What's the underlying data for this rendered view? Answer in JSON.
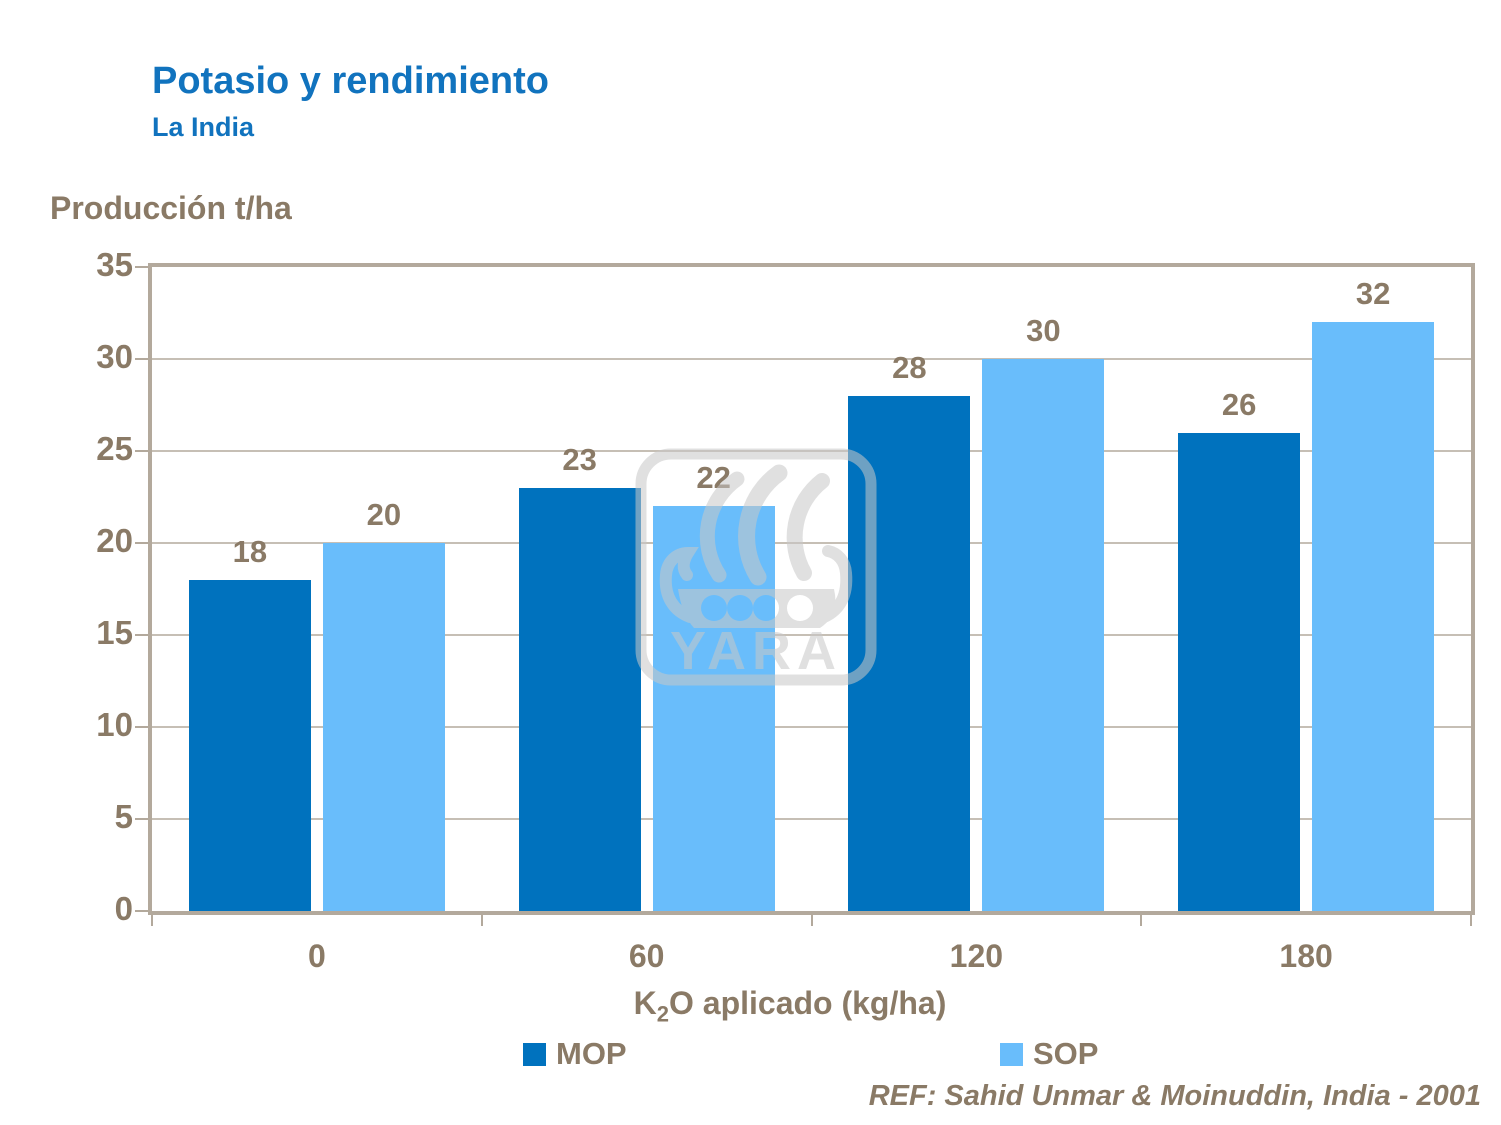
{
  "header": {
    "title": "Potasio y rendimiento",
    "subtitle": "La India"
  },
  "chart_data": {
    "type": "bar",
    "title": "Potasio y rendimiento",
    "subtitle": "La India",
    "ylabel": "Producción t/ha",
    "xlabel": "K2O aplicado (kg/ha)",
    "xlabel_parts": {
      "base": "K",
      "sub": "2",
      "rest": "O aplicado (kg/ha)"
    },
    "categories": [
      "0",
      "60",
      "120",
      "180"
    ],
    "series": [
      {
        "name": "MOP",
        "color": "#0072BE",
        "values": [
          18,
          23,
          28,
          26
        ]
      },
      {
        "name": "SOP",
        "color": "#69BDFB",
        "values": [
          20,
          22,
          30,
          32
        ]
      }
    ],
    "ylim": [
      0,
      35
    ],
    "ytick_step": 5,
    "yticks": [
      0,
      5,
      10,
      15,
      20,
      25,
      30,
      35
    ],
    "grid": true,
    "data_labels": true,
    "legend_position": "bottom"
  },
  "footer": {
    "reference": "REF: Sahid Unmar & Moinuddin, India - 2001"
  },
  "watermark": {
    "name": "yara-logo",
    "text": "YARA",
    "color": "#C8C8C8",
    "opacity": 0.55
  },
  "colors": {
    "title_blue": "#1173BE",
    "text_brown": "#8A7A66",
    "grid_tan": "#B3A99C",
    "mop_bar": "#0072BE",
    "sop_bar": "#69BDFB",
    "background": "#FFFFFF"
  }
}
